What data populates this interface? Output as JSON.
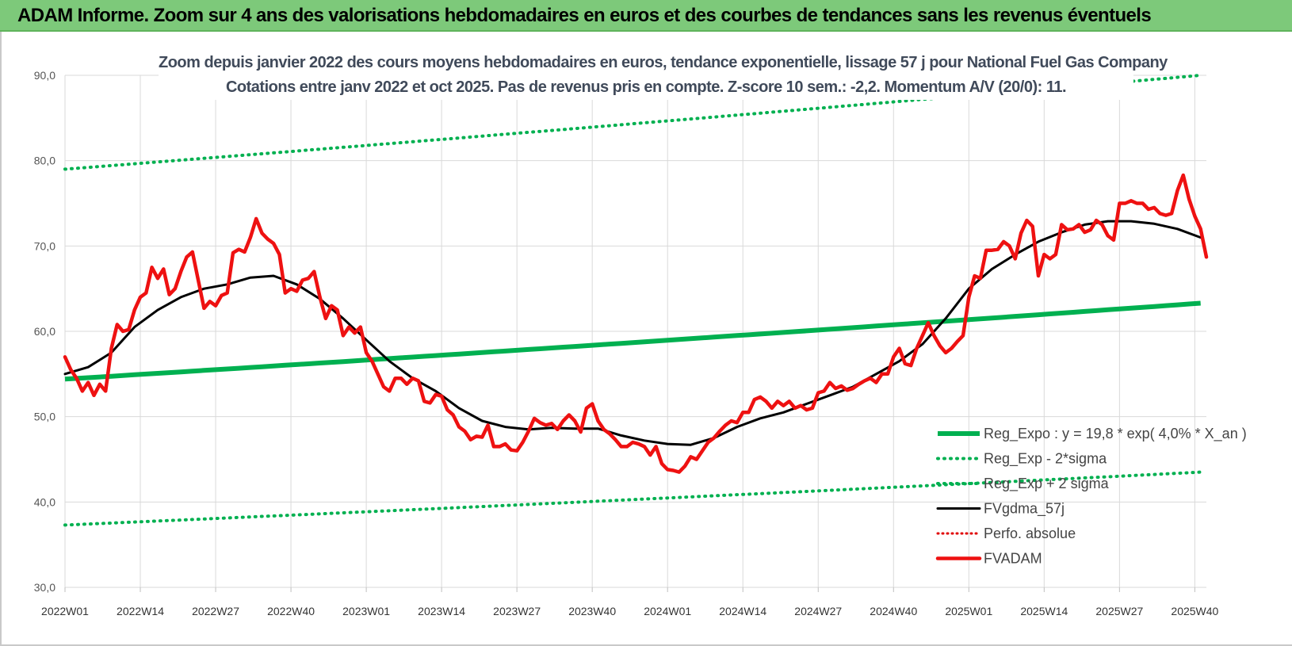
{
  "header": {
    "title": "ADAM Informe. Zoom sur 4 ans des valorisations hebdomadaires en euros et des courbes de tendances sans les revenus éventuels"
  },
  "chart_data": {
    "type": "line",
    "title_line1": "Zoom depuis janvier 2022 des cours moyens hebdomadaires en euros, tendance exponentielle, lissage 57 j pour National Fuel Gas Company",
    "title_line2": "Cotations entre janv 2022 et oct 2025. Pas de revenus pris en compte. Z-score 10 sem.: -2,2. Momentum A/V (20/0): 11.",
    "ylim": [
      30,
      90
    ],
    "yticks": [
      "30,0",
      "40,0",
      "50,0",
      "60,0",
      "70,0",
      "80,0",
      "90,0"
    ],
    "x_tick_labels": [
      "2022W01",
      "2022W14",
      "2022W27",
      "2022W40",
      "2023W01",
      "2023W14",
      "2023W27",
      "2023W40",
      "2024W01",
      "2024W14",
      "2024W27",
      "2024W40",
      "2025W01",
      "2025W14",
      "2025W27",
      "2025W40"
    ],
    "grid": true,
    "legend_position": "bottom-right",
    "colors": {
      "reg_expo": "#00b050",
      "sigma_bands": "#00b050",
      "fvgdma": "#000000",
      "perfo": "#e00000",
      "fvadam": "#ee1111"
    },
    "series": [
      {
        "name": "Reg_Expo : y = 19,8 * exp( 4,0% * X_an )",
        "style": "thick-solid",
        "keypoints": [
          [
            0,
            54.4
          ],
          [
            196,
            63.3
          ]
        ]
      },
      {
        "name": "Reg_Exp - 2*sigma",
        "style": "dotted",
        "keypoints": [
          [
            0,
            37.3
          ],
          [
            196,
            43.5
          ]
        ]
      },
      {
        "name": "Reg_Exp + 2 sigma",
        "style": "dotted",
        "keypoints": [
          [
            0,
            79.0
          ],
          [
            196,
            90.0
          ]
        ]
      },
      {
        "name": "FVgdma_57j",
        "style": "solid",
        "keypoints": [
          [
            0,
            55
          ],
          [
            4,
            55.8
          ],
          [
            8,
            57.5
          ],
          [
            12,
            60.5
          ],
          [
            16,
            62.5
          ],
          [
            20,
            64
          ],
          [
            24,
            65
          ],
          [
            28,
            65.5
          ],
          [
            32,
            66.3
          ],
          [
            36,
            66.5
          ],
          [
            40,
            65.5
          ],
          [
            44,
            63.8
          ],
          [
            48,
            61.5
          ],
          [
            52,
            59
          ],
          [
            56,
            56.5
          ],
          [
            60,
            54.5
          ],
          [
            64,
            53
          ],
          [
            68,
            51
          ],
          [
            72,
            49.5
          ],
          [
            76,
            48.8
          ],
          [
            80,
            48.5
          ],
          [
            84,
            48.7
          ],
          [
            88,
            48.6
          ],
          [
            92,
            48.6
          ],
          [
            96,
            47.8
          ],
          [
            100,
            47.2
          ],
          [
            104,
            46.8
          ],
          [
            108,
            46.7
          ],
          [
            112,
            47.5
          ],
          [
            116,
            48.8
          ],
          [
            120,
            49.8
          ],
          [
            124,
            50.5
          ],
          [
            128,
            51.5
          ],
          [
            132,
            52.5
          ],
          [
            136,
            53.5
          ],
          [
            140,
            55
          ],
          [
            144,
            56.5
          ],
          [
            148,
            58.5
          ],
          [
            152,
            61.5
          ],
          [
            156,
            65
          ],
          [
            160,
            67.3
          ],
          [
            164,
            69
          ],
          [
            168,
            70.5
          ],
          [
            172,
            71.6
          ],
          [
            176,
            72.5
          ],
          [
            180,
            72.9
          ],
          [
            184,
            72.9
          ],
          [
            188,
            72.6
          ],
          [
            192,
            72.0
          ],
          [
            196,
            71.0
          ]
        ]
      },
      {
        "name": "Perfo. absolue",
        "style": "dotted-red",
        "keypoints": []
      },
      {
        "name": "FVADAM",
        "style": "thick-solid",
        "keypoints": [
          [
            0,
            57
          ],
          [
            1,
            55.5
          ],
          [
            2,
            54.5
          ],
          [
            3,
            53
          ],
          [
            4,
            54
          ],
          [
            5,
            52.5
          ],
          [
            6,
            53.8
          ],
          [
            7,
            53
          ],
          [
            8,
            58
          ],
          [
            9,
            60.8
          ],
          [
            10,
            60
          ],
          [
            11,
            60.2
          ],
          [
            12,
            62.5
          ],
          [
            13,
            64
          ],
          [
            14,
            64.5
          ],
          [
            15,
            67.5
          ],
          [
            16,
            66.2
          ],
          [
            17,
            67.3
          ],
          [
            18,
            64.3
          ],
          [
            19,
            65
          ],
          [
            20,
            67
          ],
          [
            21,
            68.7
          ],
          [
            22,
            69.3
          ],
          [
            23,
            66
          ],
          [
            24,
            62.7
          ],
          [
            25,
            63.5
          ],
          [
            26,
            63
          ],
          [
            27,
            64.2
          ],
          [
            28,
            64.5
          ],
          [
            29,
            69.2
          ],
          [
            30,
            69.6
          ],
          [
            31,
            69.3
          ],
          [
            32,
            71
          ],
          [
            33,
            73.2
          ],
          [
            34,
            71.5
          ],
          [
            35,
            70.8
          ],
          [
            36,
            70.3
          ],
          [
            37,
            69
          ],
          [
            38,
            64.5
          ],
          [
            39,
            65
          ],
          [
            40,
            64.7
          ],
          [
            41,
            66
          ],
          [
            42,
            66.2
          ],
          [
            43,
            67
          ],
          [
            44,
            64
          ],
          [
            45,
            61.5
          ],
          [
            46,
            63
          ],
          [
            47,
            62.5
          ],
          [
            48,
            59.5
          ],
          [
            49,
            60.5
          ],
          [
            50,
            59.8
          ],
          [
            51,
            60.5
          ],
          [
            52,
            57.5
          ],
          [
            53,
            56.5
          ],
          [
            54,
            55
          ],
          [
            55,
            53.5
          ],
          [
            56,
            53
          ],
          [
            57,
            54.5
          ],
          [
            58,
            54.5
          ],
          [
            59,
            53.8
          ],
          [
            60,
            54.5
          ],
          [
            61,
            54.2
          ],
          [
            62,
            51.8
          ],
          [
            63,
            51.6
          ],
          [
            64,
            52.6
          ],
          [
            65,
            52.4
          ],
          [
            66,
            50.8
          ],
          [
            67,
            50.2
          ],
          [
            68,
            48.8
          ],
          [
            69,
            48.3
          ],
          [
            70,
            47.3
          ],
          [
            71,
            47.7
          ],
          [
            72,
            47.6
          ],
          [
            73,
            49
          ],
          [
            74,
            46.5
          ],
          [
            75,
            46.5
          ],
          [
            76,
            46.8
          ],
          [
            77,
            46.1
          ],
          [
            78,
            46
          ],
          [
            79,
            47
          ],
          [
            80,
            48.3
          ],
          [
            81,
            49.8
          ],
          [
            82,
            49.3
          ],
          [
            83,
            49
          ],
          [
            84,
            49.2
          ],
          [
            85,
            48.5
          ],
          [
            86,
            49.5
          ],
          [
            87,
            50.2
          ],
          [
            88,
            49.5
          ],
          [
            89,
            48.2
          ],
          [
            90,
            51
          ],
          [
            91,
            51.5
          ],
          [
            92,
            49.5
          ],
          [
            93,
            48.5
          ],
          [
            94,
            48
          ],
          [
            95,
            47.3
          ],
          [
            96,
            46.5
          ],
          [
            97,
            46.5
          ],
          [
            98,
            47
          ],
          [
            99,
            46.8
          ],
          [
            100,
            46.5
          ],
          [
            101,
            45.5
          ],
          [
            102,
            46.5
          ],
          [
            103,
            44.5
          ],
          [
            104,
            43.8
          ],
          [
            105,
            43.7
          ],
          [
            106,
            43.5
          ],
          [
            107,
            44.2
          ],
          [
            108,
            45.3
          ],
          [
            109,
            45
          ],
          [
            110,
            46
          ],
          [
            111,
            47
          ],
          [
            112,
            47.5
          ],
          [
            113,
            48.3
          ],
          [
            114,
            49
          ],
          [
            115,
            49.5
          ],
          [
            116,
            49.3
          ],
          [
            117,
            50.5
          ],
          [
            118,
            50.5
          ],
          [
            119,
            52
          ],
          [
            120,
            52.3
          ],
          [
            121,
            51.8
          ],
          [
            122,
            51
          ],
          [
            123,
            51.8
          ],
          [
            124,
            51.3
          ],
          [
            125,
            51.8
          ],
          [
            126,
            51
          ],
          [
            127,
            51.3
          ],
          [
            128,
            50.8
          ],
          [
            129,
            51
          ],
          [
            130,
            52.8
          ],
          [
            131,
            53
          ],
          [
            132,
            54
          ],
          [
            133,
            53.3
          ],
          [
            134,
            53.6
          ],
          [
            135,
            53.1
          ],
          [
            136,
            53.3
          ],
          [
            137,
            53.8
          ],
          [
            138,
            54.2
          ],
          [
            139,
            54.5
          ],
          [
            140,
            54
          ],
          [
            141,
            55
          ],
          [
            142,
            55
          ],
          [
            143,
            57
          ],
          [
            144,
            58
          ],
          [
            145,
            56.2
          ],
          [
            146,
            56
          ],
          [
            147,
            58
          ],
          [
            148,
            59.5
          ],
          [
            149,
            61
          ],
          [
            150,
            59.5
          ],
          [
            151,
            58.3
          ],
          [
            152,
            57.5
          ],
          [
            153,
            58
          ],
          [
            154,
            58.8
          ],
          [
            155,
            59.5
          ],
          [
            156,
            64
          ],
          [
            157,
            66.5
          ],
          [
            158,
            66.2
          ],
          [
            159,
            69.5
          ],
          [
            160,
            69.5
          ],
          [
            161,
            69.6
          ],
          [
            162,
            70.5
          ],
          [
            163,
            70
          ],
          [
            164,
            68.5
          ],
          [
            165,
            71.5
          ],
          [
            166,
            73
          ],
          [
            167,
            72.3
          ],
          [
            168,
            66.5
          ],
          [
            169,
            69
          ],
          [
            170,
            68.5
          ],
          [
            171,
            69
          ],
          [
            172,
            72.5
          ],
          [
            173,
            71.9
          ],
          [
            174,
            72
          ],
          [
            175,
            72.5
          ],
          [
            176,
            71.6
          ],
          [
            177,
            71.9
          ],
          [
            178,
            73
          ],
          [
            179,
            72.5
          ],
          [
            180,
            71.2
          ],
          [
            181,
            70.7
          ],
          [
            182,
            75
          ],
          [
            183,
            75
          ],
          [
            184,
            75.3
          ],
          [
            185,
            75
          ],
          [
            186,
            75
          ],
          [
            187,
            74.3
          ],
          [
            188,
            74.5
          ],
          [
            189,
            73.8
          ],
          [
            190,
            73.6
          ],
          [
            191,
            73.8
          ],
          [
            192,
            76.5
          ],
          [
            193,
            78.3
          ],
          [
            194,
            75.5
          ],
          [
            195,
            73.5
          ],
          [
            196,
            72
          ],
          [
            197,
            68.7
          ]
        ]
      }
    ]
  }
}
